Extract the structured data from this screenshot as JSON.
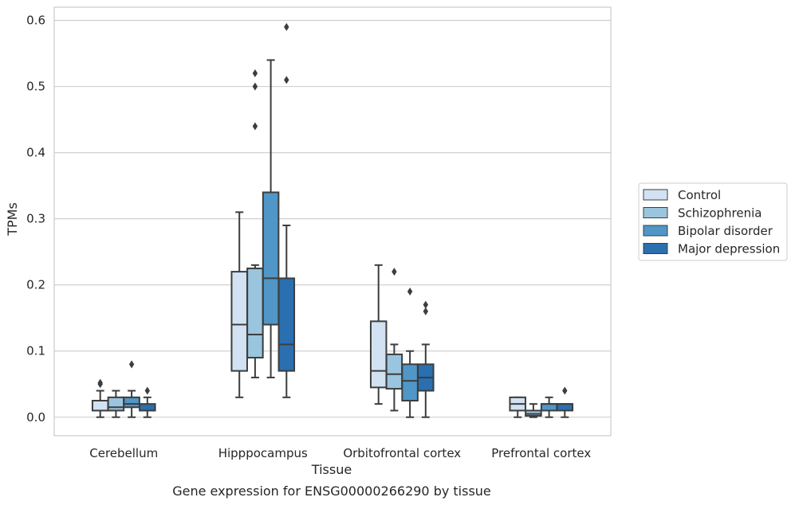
{
  "chart_data": {
    "type": "box",
    "caption": "Gene expression for ENSG00000266290 by tissue",
    "xlabel": "Tissue",
    "ylabel": "TPMs",
    "ylim": [
      -0.028,
      0.62
    ],
    "yticks": [
      0.0,
      0.1,
      0.2,
      0.3,
      0.4,
      0.5,
      0.6
    ],
    "ytick_labels": [
      "0.0",
      "0.1",
      "0.2",
      "0.3",
      "0.4",
      "0.5",
      "0.6"
    ],
    "grid": true,
    "legend_position": "outside right",
    "categories": [
      "Cerebellum",
      "Hipppocampus",
      "Orbitofrontal cortex",
      "Prefrontal cortex"
    ],
    "series": [
      {
        "name": "Control",
        "color": "#d2e2f2",
        "boxes": [
          {
            "whislo": 0.0,
            "q1": 0.01,
            "med": 0.01,
            "q3": 0.025,
            "whishi": 0.04,
            "fliers": [
              0.05,
              0.052
            ]
          },
          {
            "whislo": 0.03,
            "q1": 0.07,
            "med": 0.14,
            "q3": 0.22,
            "whishi": 0.31,
            "fliers": []
          },
          {
            "whislo": 0.02,
            "q1": 0.045,
            "med": 0.07,
            "q3": 0.145,
            "whishi": 0.23,
            "fliers": []
          },
          {
            "whislo": 0.0,
            "q1": 0.01,
            "med": 0.02,
            "q3": 0.03,
            "whishi": 0.03,
            "fliers": []
          }
        ]
      },
      {
        "name": "Schizophrenia",
        "color": "#9ac5de",
        "boxes": [
          {
            "whislo": 0.0,
            "q1": 0.01,
            "med": 0.015,
            "q3": 0.03,
            "whishi": 0.04,
            "fliers": []
          },
          {
            "whislo": 0.06,
            "q1": 0.09,
            "med": 0.125,
            "q3": 0.225,
            "whishi": 0.23,
            "fliers": [
              0.44,
              0.5,
              0.52
            ]
          },
          {
            "whislo": 0.01,
            "q1": 0.043,
            "med": 0.065,
            "q3": 0.095,
            "whishi": 0.11,
            "fliers": [
              0.22
            ]
          },
          {
            "whislo": 0.0,
            "q1": 0.002,
            "med": 0.005,
            "q3": 0.01,
            "whishi": 0.02,
            "fliers": []
          }
        ]
      },
      {
        "name": "Bipolar disorder",
        "color": "#5096c7",
        "boxes": [
          {
            "whislo": 0.0,
            "q1": 0.015,
            "med": 0.02,
            "q3": 0.03,
            "whishi": 0.04,
            "fliers": [
              0.08
            ]
          },
          {
            "whislo": 0.06,
            "q1": 0.14,
            "med": 0.21,
            "q3": 0.34,
            "whishi": 0.54,
            "fliers": []
          },
          {
            "whislo": 0.0,
            "q1": 0.025,
            "med": 0.055,
            "q3": 0.08,
            "whishi": 0.1,
            "fliers": [
              0.19
            ]
          },
          {
            "whislo": 0.0,
            "q1": 0.01,
            "med": 0.02,
            "q3": 0.02,
            "whishi": 0.03,
            "fliers": []
          }
        ]
      },
      {
        "name": "Major depression",
        "color": "#2a6fb0",
        "boxes": [
          {
            "whislo": 0.0,
            "q1": 0.01,
            "med": 0.01,
            "q3": 0.02,
            "whishi": 0.03,
            "fliers": [
              0.04
            ]
          },
          {
            "whislo": 0.03,
            "q1": 0.07,
            "med": 0.11,
            "q3": 0.21,
            "whishi": 0.29,
            "fliers": [
              0.51,
              0.59
            ]
          },
          {
            "whislo": 0.0,
            "q1": 0.04,
            "med": 0.06,
            "q3": 0.08,
            "whishi": 0.11,
            "fliers": [
              0.16,
              0.17
            ]
          },
          {
            "whislo": 0.0,
            "q1": 0.01,
            "med": 0.02,
            "q3": 0.02,
            "whishi": 0.02,
            "fliers": [
              0.04
            ]
          }
        ]
      }
    ]
  }
}
